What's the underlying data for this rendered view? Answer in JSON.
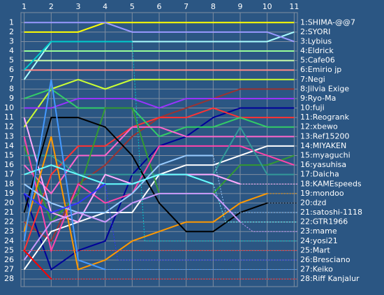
{
  "chart_data": {
    "type": "line",
    "x": [
      1,
      2,
      3,
      4,
      5,
      6,
      7,
      8,
      9,
      10,
      11
    ],
    "xlim": [
      0.88,
      11.12
    ],
    "xticks": [
      1,
      2,
      3,
      4,
      5,
      6,
      7,
      8,
      9,
      10,
      11
    ],
    "ylim": [
      -0.05,
      28.8
    ],
    "yticks": [
      1,
      2,
      3,
      4,
      5,
      6,
      7,
      8,
      9,
      10,
      11,
      12,
      13,
      14,
      15,
      16,
      17,
      18,
      19,
      20,
      21,
      22,
      23,
      24,
      25,
      26,
      27,
      28
    ],
    "y_reversed": true,
    "grid": true,
    "series": [
      {
        "name": "1:SHIMA-@@7",
        "color": "#ffff00",
        "values": [
          2,
          2,
          2,
          1,
          1,
          1,
          1,
          1,
          1,
          1,
          1
        ]
      },
      {
        "name": "2:SYORI",
        "color": "#aaffff",
        "values": [
          7,
          3,
          3,
          3,
          3,
          3,
          3,
          3,
          3,
          3,
          2
        ]
      },
      {
        "name": "3:Lybius",
        "color": "#9999ff",
        "values": [
          1,
          1,
          1,
          1,
          2,
          2,
          2,
          2,
          2,
          2,
          3
        ]
      },
      {
        "name": "4:Eldrick",
        "color": "#99ff99",
        "values": [
          4,
          4,
          4,
          4,
          4,
          4,
          4,
          4,
          4,
          4,
          4
        ]
      },
      {
        "name": "5:Cafe06",
        "color": "#ccffaa",
        "values": [
          5,
          5,
          5,
          5,
          5,
          5,
          5,
          5,
          5,
          5,
          5
        ]
      },
      {
        "name": "6:Emirio jp",
        "color": "#ff8888",
        "values": [
          6,
          6,
          6,
          6,
          6,
          6,
          6,
          6,
          6,
          6,
          6
        ]
      },
      {
        "name": "7:Negi",
        "color": "#ccff33",
        "values": [
          12,
          8,
          7,
          8,
          7,
          7,
          7,
          7,
          7,
          7,
          7
        ]
      },
      {
        "name": "8:Jilvia Exige",
        "color": "#993333",
        "values": [
          22,
          24,
          18,
          16,
          13,
          11,
          10,
          9,
          8,
          8,
          8
        ]
      },
      {
        "name": "9:Ryo-Ma",
        "color": "#9933ff",
        "values": [
          10,
          10,
          9,
          9,
          9,
          10,
          9,
          9,
          9,
          9,
          9
        ]
      },
      {
        "name": "10:fuji",
        "color": "#000099",
        "values": [
          19,
          27,
          25,
          24,
          17,
          14,
          13,
          11,
          10,
          10,
          10
        ]
      },
      {
        "name": "11:Reogrank",
        "color": "#ff3333",
        "values": [
          25,
          17,
          14,
          14,
          12,
          11,
          11,
          10,
          11,
          11,
          11
        ]
      },
      {
        "name": "12:xbewo",
        "color": "#33cc66",
        "values": [
          9,
          8,
          10,
          10,
          10,
          13,
          12,
          12,
          11,
          12,
          12
        ]
      },
      {
        "name": "13:Ref15200",
        "color": "#ff66cc",
        "values": [
          16,
          19,
          15,
          15,
          12,
          12,
          13,
          13,
          13,
          13,
          13
        ]
      },
      {
        "name": "14:MIYAKEN",
        "color": "#ffffff",
        "values": [
          27,
          23,
          22,
          21,
          21,
          17,
          16,
          16,
          15,
          14,
          14
        ]
      },
      {
        "name": "15:myaguchi",
        "color": "#339933",
        "values": [
          14,
          22,
          19,
          10,
          10,
          19,
          19,
          19,
          16,
          16,
          15
        ]
      },
      {
        "name": "16:yasuhisa",
        "color": "#ff44aa",
        "values": [
          13,
          25,
          18,
          20,
          19,
          14,
          14,
          14,
          14,
          15,
          16
        ]
      },
      {
        "name": "17:Daicha",
        "color": "#339999",
        "values": [
          15,
          15,
          17,
          17,
          17,
          17,
          17,
          17,
          12,
          17,
          17
        ]
      },
      {
        "name": "18:KAMEspeeds",
        "color": "#ffaaff",
        "values": [
          11,
          21,
          22,
          17,
          18,
          17,
          17,
          17,
          18,
          null,
          null
        ]
      },
      {
        "name": "19:mondoo",
        "color": "#ff9900",
        "values": [
          23,
          13,
          27,
          26,
          24,
          23,
          22,
          22,
          20,
          19,
          null
        ]
      },
      {
        "name": "20:dzd",
        "color": "#000000",
        "values": [
          21,
          11,
          11,
          12,
          15,
          20,
          23,
          23,
          21,
          20,
          null
        ]
      },
      {
        "name": "21:satoshi-1118",
        "color": "#99ccff",
        "values": [
          18,
          20,
          21,
          21,
          19,
          16,
          15,
          15,
          null,
          null,
          null
        ]
      },
      {
        "name": "22:GTR1966",
        "color": "#66ffff",
        "values": [
          17,
          16,
          17,
          18,
          18,
          17,
          17,
          18,
          null,
          null,
          null
        ]
      },
      {
        "name": "23:mame",
        "color": "#cc99ff",
        "values": [
          26,
          22,
          21,
          22,
          20,
          19,
          19,
          19,
          22,
          null,
          null
        ]
      },
      {
        "name": "24:yosi21",
        "color": "#00cccc",
        "values": [
          6,
          3,
          3,
          3,
          3,
          null,
          null,
          null,
          null,
          null,
          null
        ]
      },
      {
        "name": "25:Mart",
        "color": "#ff2222",
        "values": [
          25,
          null,
          null,
          null,
          null,
          null,
          null,
          null,
          null,
          null,
          null
        ]
      },
      {
        "name": "26:Bresciano",
        "color": "#3333ff",
        "values": [
          19,
          21,
          20,
          18,
          null,
          null,
          null,
          null,
          null,
          null,
          null
        ]
      },
      {
        "name": "27:Keiko",
        "color": "#4499ff",
        "values": [
          24,
          7,
          26,
          27,
          null,
          null,
          null,
          null,
          null,
          null,
          null
        ]
      },
      {
        "name": "28:Riff Kanjalur",
        "color": "#ff0000",
        "values": [
          25,
          28,
          null,
          null,
          null,
          null,
          null,
          null,
          null,
          null,
          null
        ]
      }
    ]
  }
}
